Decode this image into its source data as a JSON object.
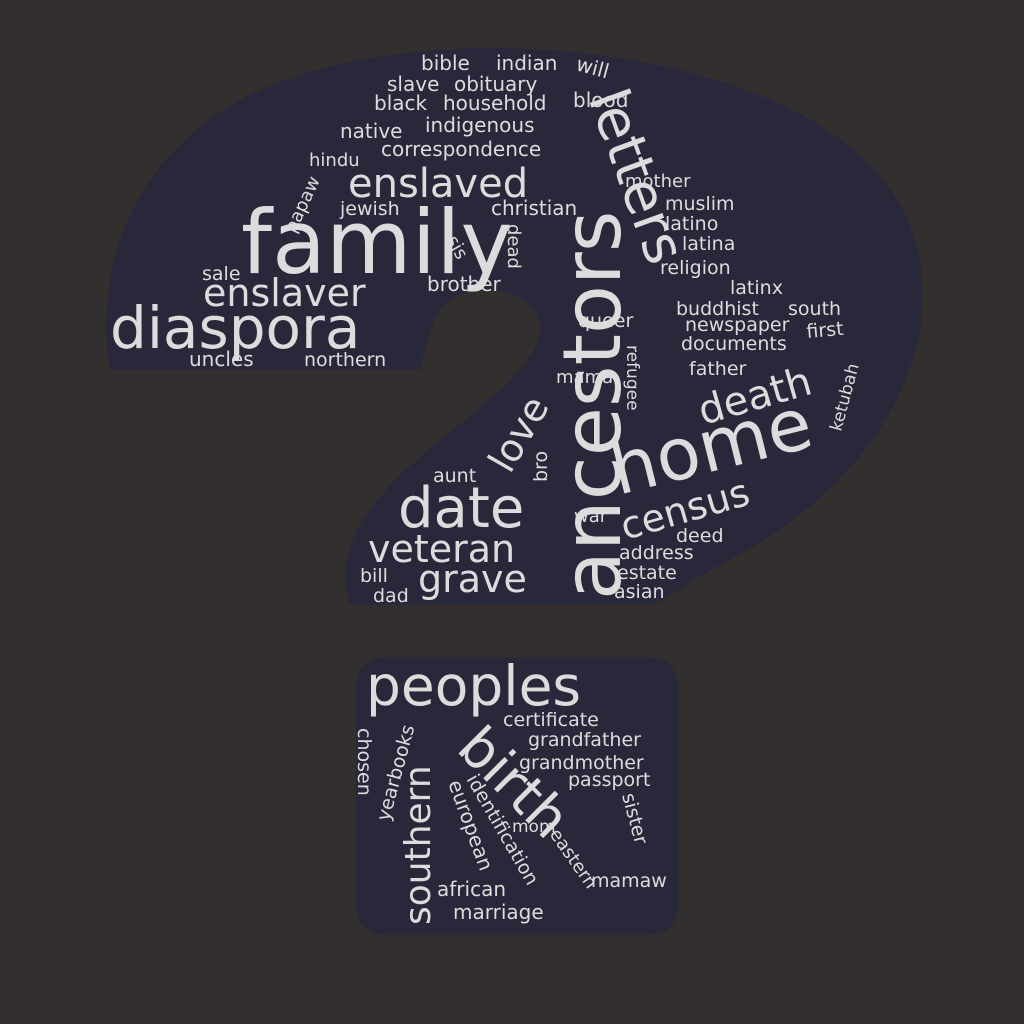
{
  "colors": {
    "background": "#322f2e",
    "shape": "#29283a",
    "text": "#dcdcdc"
  },
  "shape": "question-mark",
  "words": [
    "family",
    "ancestors",
    "home",
    "letters",
    "diaspora",
    "peoples",
    "birth",
    "date",
    "enslaved",
    "enslaver",
    "veteran",
    "grave",
    "census",
    "death",
    "love",
    "southern",
    "bible",
    "indian",
    "will",
    "slave",
    "obituary",
    "black",
    "household",
    "blood",
    "native",
    "indigenous",
    "correspondence",
    "hindu",
    "mother",
    "muslim",
    "latino",
    "latina",
    "religion",
    "latinx",
    "jewish",
    "christian",
    "papaw",
    "sis",
    "dead",
    "sale",
    "brother",
    "buddhist",
    "south",
    "newspaper",
    "first",
    "queer",
    "documents",
    "father",
    "uncles",
    "northern",
    "mama",
    "refugee",
    "ketubah",
    "aunt",
    "bro",
    "war",
    "deed",
    "address",
    "bill",
    "estate",
    "dad",
    "asian",
    "certificate",
    "grandfather",
    "grandmother",
    "passport",
    "chosen",
    "yearbooks",
    "european",
    "identification",
    "sister",
    "mom",
    "eastern",
    "mamaw",
    "african",
    "marriage"
  ]
}
